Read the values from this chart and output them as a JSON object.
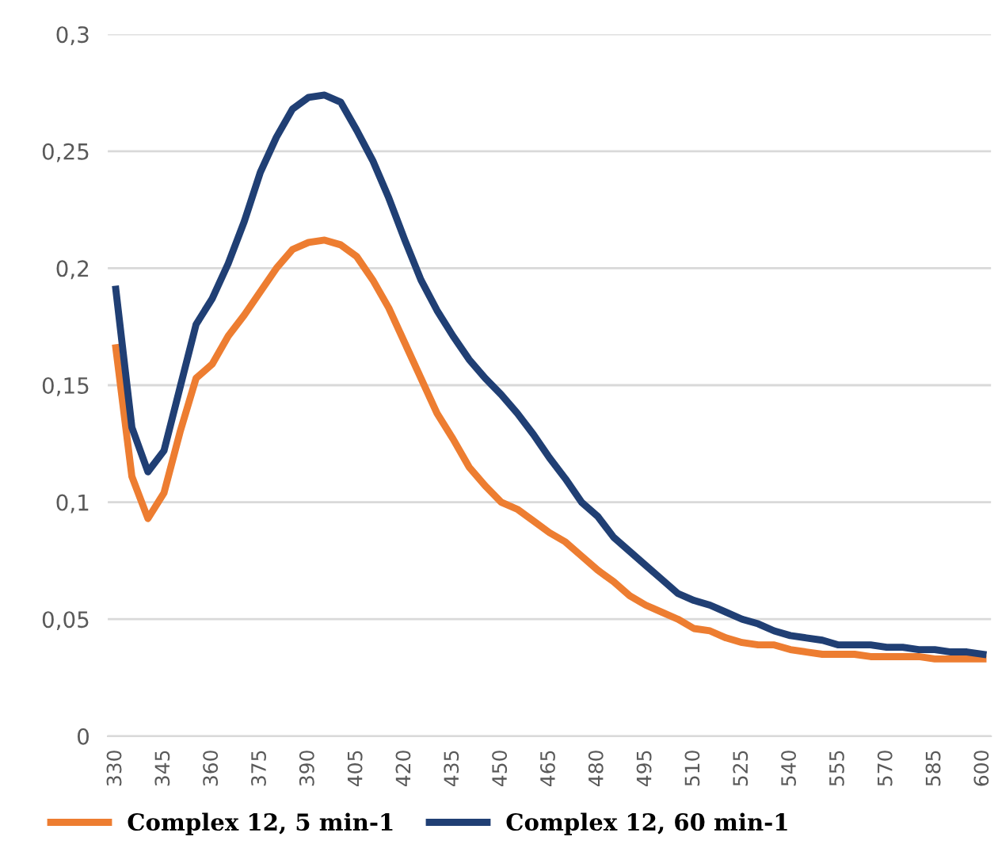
{
  "chart_data": {
    "type": "line",
    "x": [
      330,
      335,
      340,
      345,
      350,
      355,
      360,
      365,
      370,
      375,
      380,
      385,
      390,
      395,
      400,
      405,
      410,
      415,
      420,
      425,
      430,
      435,
      440,
      445,
      450,
      455,
      460,
      465,
      470,
      475,
      480,
      485,
      490,
      495,
      500,
      505,
      510,
      515,
      520,
      525,
      530,
      535,
      540,
      545,
      550,
      555,
      560,
      565,
      570,
      575,
      580,
      585,
      590,
      595,
      600
    ],
    "series": [
      {
        "name": "Complex 12, 5 min-1",
        "color": "#ed7d31",
        "values": [
          0.166,
          0.111,
          0.093,
          0.104,
          0.13,
          0.153,
          0.159,
          0.171,
          0.18,
          0.19,
          0.2,
          0.208,
          0.211,
          0.212,
          0.21,
          0.205,
          0.195,
          0.183,
          0.168,
          0.153,
          0.138,
          0.127,
          0.115,
          0.107,
          0.1,
          0.097,
          0.092,
          0.087,
          0.083,
          0.077,
          0.071,
          0.066,
          0.06,
          0.056,
          0.053,
          0.05,
          0.046,
          0.045,
          0.042,
          0.04,
          0.039,
          0.039,
          0.037,
          0.036,
          0.035,
          0.035,
          0.035,
          0.034,
          0.034,
          0.034,
          0.034,
          0.033,
          0.033,
          0.033,
          0.033
        ]
      },
      {
        "name": "Complex 12, 60 min-1",
        "color": "#203f74",
        "values": [
          0.191,
          0.132,
          0.113,
          0.122,
          0.149,
          0.176,
          0.187,
          0.202,
          0.22,
          0.241,
          0.256,
          0.268,
          0.273,
          0.274,
          0.271,
          0.259,
          0.246,
          0.23,
          0.212,
          0.195,
          0.182,
          0.171,
          0.161,
          0.153,
          0.146,
          0.138,
          0.129,
          0.119,
          0.11,
          0.1,
          0.094,
          0.085,
          0.079,
          0.073,
          0.067,
          0.061,
          0.058,
          0.056,
          0.053,
          0.05,
          0.048,
          0.045,
          0.043,
          0.042,
          0.041,
          0.039,
          0.039,
          0.039,
          0.038,
          0.038,
          0.037,
          0.037,
          0.036,
          0.036,
          0.035
        ]
      }
    ],
    "xlim": [
      327.5,
      602.5
    ],
    "xticks": [
      330,
      345,
      360,
      375,
      390,
      405,
      420,
      435,
      450,
      465,
      480,
      495,
      510,
      525,
      540,
      555,
      570,
      585,
      600
    ],
    "ylim": [
      0,
      0.3
    ],
    "yticks": [
      0,
      {
        "value": 0.05,
        "label": "0,05"
      },
      {
        "value": 0.1,
        "label": "0,1"
      },
      {
        "value": 0.15,
        "label": "0,15"
      },
      {
        "value": 0.2,
        "label": "0,2"
      },
      {
        "value": 0.25,
        "label": "0,25"
      },
      {
        "value": 0.3,
        "label": "0,3"
      }
    ],
    "grid": "y",
    "legend": "bottom",
    "marker": "none",
    "line_style": "solid"
  }
}
